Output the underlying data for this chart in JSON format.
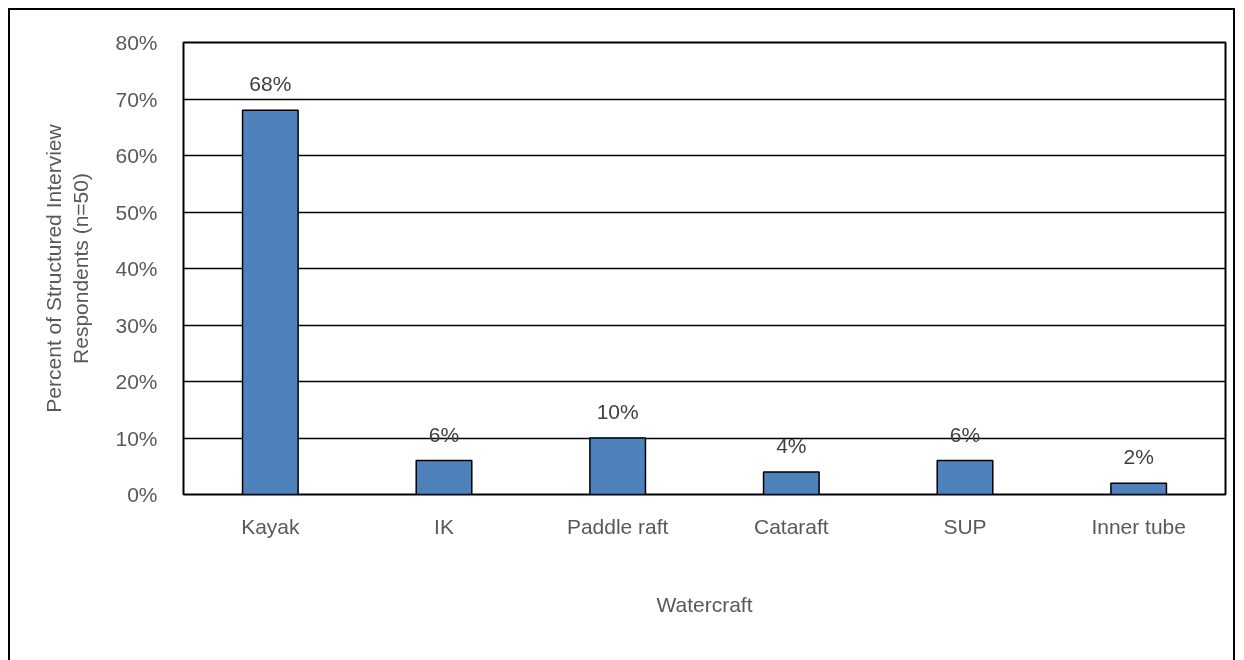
{
  "chart_data": {
    "type": "bar",
    "xlabel": "Watercraft",
    "ylabel": "Percent of Structured Interview\nRespondents (n=50)",
    "categories": [
      "Kayak",
      "IK",
      "Paddle raft",
      "Cataraft",
      "SUP",
      "Inner tube"
    ],
    "values": [
      68,
      6,
      10,
      4,
      6,
      2
    ],
    "value_labels": [
      "68%",
      "6%",
      "10%",
      "4%",
      "6%",
      "2%"
    ],
    "color": "#4f81bd",
    "ylim": [
      0,
      80
    ],
    "yticks": [
      {
        "value": 0,
        "label": "0%"
      },
      {
        "value": 10,
        "label": "10%"
      },
      {
        "value": 20,
        "label": "20%"
      },
      {
        "value": 30,
        "label": "30%"
      },
      {
        "value": 40,
        "label": "40%"
      },
      {
        "value": 50,
        "label": "50%"
      },
      {
        "value": 60,
        "label": "60%"
      },
      {
        "value": 70,
        "label": "70%"
      },
      {
        "value": 80,
        "label": "80%"
      }
    ],
    "grid": "y"
  }
}
